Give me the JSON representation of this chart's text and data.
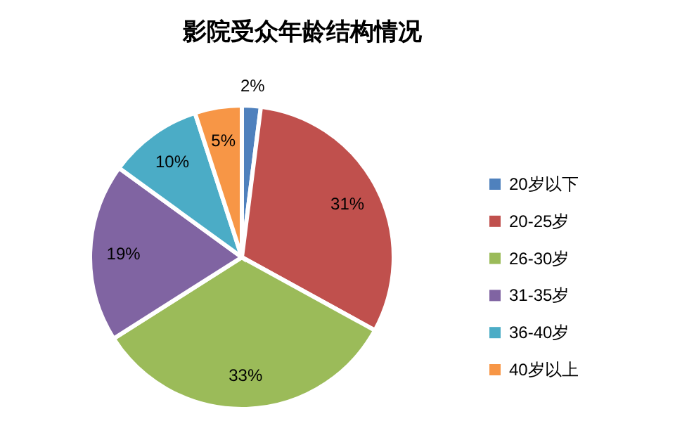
{
  "chart_data": {
    "type": "pie",
    "title": "影院受众年龄结构情况",
    "categories": [
      "20岁以下",
      "20-25岁",
      "26-30岁",
      "31-35岁",
      "36-40岁",
      "40岁以上"
    ],
    "values": [
      2,
      31,
      33,
      19,
      10,
      5
    ],
    "colors": [
      "#4f81bd",
      "#c0504d",
      "#9bbb59",
      "#8064a2",
      "#4bacc6",
      "#f79646"
    ],
    "value_labels": [
      "2%",
      "31%",
      "33%",
      "19%",
      "10%",
      "5%"
    ],
    "legend": "right"
  }
}
